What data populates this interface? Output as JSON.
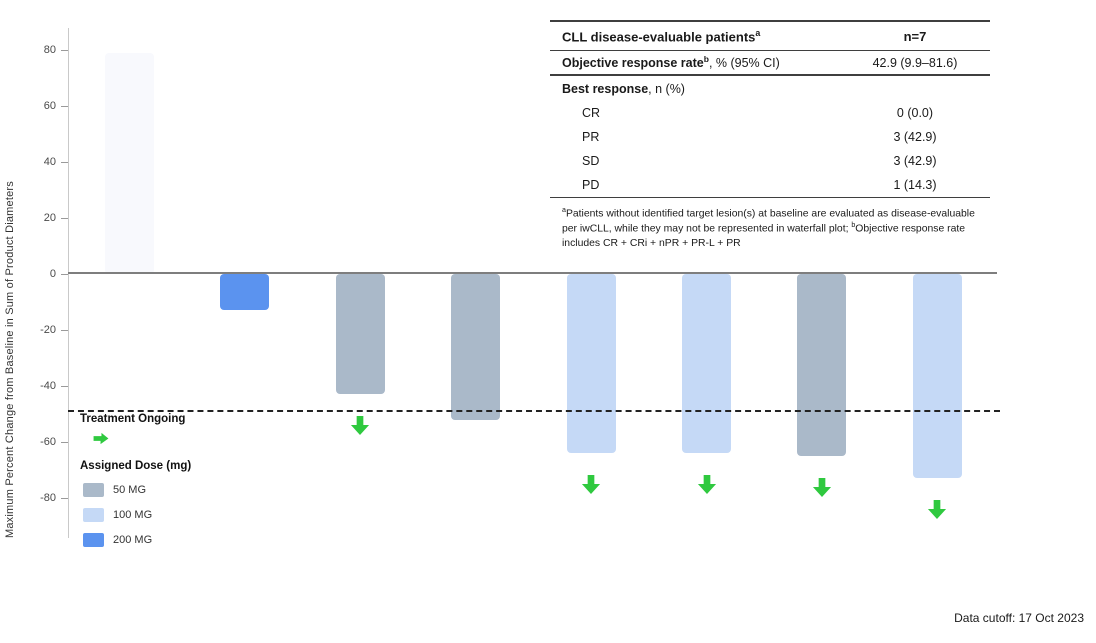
{
  "chart_data": {
    "type": "bar",
    "subtype": "waterfall",
    "title": "",
    "ylabel": "Maximum Percent Change from Baseline in Sum of Product Diameters",
    "xlabel": "",
    "yticks": [
      80,
      60,
      40,
      20,
      0,
      -20,
      -40,
      -60,
      -80
    ],
    "ylim": [
      -90,
      88
    ],
    "grid": "off",
    "reference_line_y": -49,
    "patients": [
      {
        "value": 79,
        "dose_mg": null,
        "ongoing": false
      },
      {
        "value": -13,
        "dose_mg": 200,
        "ongoing": false
      },
      {
        "value": -43,
        "dose_mg": 50,
        "ongoing": true
      },
      {
        "value": -52,
        "dose_mg": 50,
        "ongoing": false
      },
      {
        "value": -64,
        "dose_mg": 100,
        "ongoing": true
      },
      {
        "value": -64,
        "dose_mg": 100,
        "ongoing": true
      },
      {
        "value": -65,
        "dose_mg": 50,
        "ongoing": true
      },
      {
        "value": -73,
        "dose_mg": 100,
        "ongoing": true
      }
    ],
    "dose_colors": {
      "50": "#aab9c9",
      "100": "#c5d9f6",
      "200": "#5b93ef",
      "unknown": "#f8f9fd"
    },
    "arrow_color": "#2fc93f",
    "legend_position": "lower-left"
  },
  "legend": {
    "ongoing_title": "Treatment Ongoing",
    "dose_title": "Assigned Dose (mg)",
    "items": [
      {
        "label": "50 MG"
      },
      {
        "label": "100 MG"
      },
      {
        "label": "200 MG"
      }
    ]
  },
  "table": {
    "header": {
      "label": "CLL disease-evaluable patients",
      "label_sup": "a",
      "value": "n=7"
    },
    "orr": {
      "label_bold": "Objective response rate",
      "label_sup": "b",
      "label_rest": ", % (95% CI)",
      "value": "42.9 (9.9–81.6)"
    },
    "best_response": {
      "label_bold": "Best response",
      "label_rest": ", n (%)"
    },
    "rows": [
      {
        "label": "CR",
        "value": "0 (0.0)"
      },
      {
        "label": "PR",
        "value": "3 (42.9)"
      },
      {
        "label": "SD",
        "value": "3 (42.9)"
      },
      {
        "label": "PD",
        "value": "1 (14.3)"
      }
    ],
    "footnote": {
      "sup_a": "a",
      "text_a": "Patients without identified target lesion(s) at baseline are evaluated as disease-evaluable per iwCLL, while they may not be represented in waterfall plot; ",
      "sup_b": "b",
      "text_b": "Objective response rate includes CR + CRi + nPR + PR-L + PR"
    }
  },
  "footer": {
    "data_cutoff": "Data cutoff: 17 Oct 2023"
  }
}
